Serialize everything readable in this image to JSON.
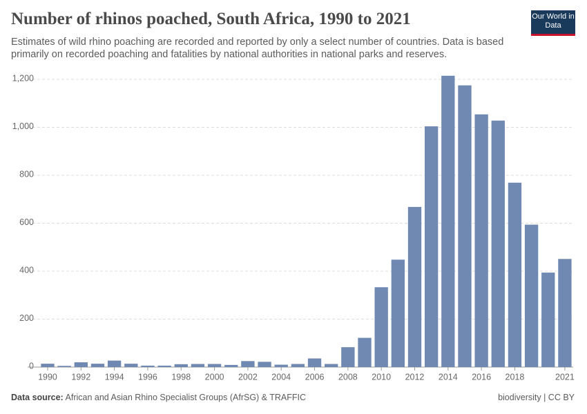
{
  "chart_data": {
    "type": "bar",
    "title": "Number of rhinos poached, South Africa, 1990 to 2021",
    "subtitle": "Estimates of wild rhino poaching are recorded and reported by only a select number of countries. Data is based primarily on recorded poaching and fatalities by national authorities in national parks and reserves.",
    "logo": "Our World in Data",
    "source_label": "Data source:",
    "source": "African and Asian Rhino Specialist Groups (AfrSG) & TRAFFIC",
    "license": "biodiversity | CC BY",
    "x": [
      1990,
      1991,
      1992,
      1993,
      1994,
      1995,
      1996,
      1997,
      1998,
      1999,
      2000,
      2001,
      2002,
      2003,
      2004,
      2005,
      2006,
      2007,
      2008,
      2009,
      2010,
      2011,
      2012,
      2013,
      2014,
      2015,
      2016,
      2017,
      2018,
      2019,
      2020,
      2021
    ],
    "values": [
      14,
      5,
      20,
      14,
      27,
      14,
      6,
      6,
      12,
      13,
      13,
      9,
      25,
      22,
      10,
      13,
      36,
      13,
      83,
      122,
      333,
      448,
      668,
      1004,
      1215,
      1175,
      1054,
      1028,
      769,
      594,
      394,
      451
    ],
    "color": "#7089b2",
    "xlim": [
      1988.8,
      2021.5
    ],
    "xticks": [
      1990,
      1992,
      1994,
      1996,
      1998,
      2000,
      2002,
      2004,
      2006,
      2008,
      2010,
      2012,
      2014,
      2016,
      2018,
      2021
    ],
    "ylim": [
      0,
      1200
    ],
    "yticks": [
      0,
      200,
      400,
      600,
      800,
      {
        "value": 1000,
        "label": "1,000"
      },
      {
        "value": 1200,
        "label": "1,200"
      }
    ],
    "grid": true
  }
}
